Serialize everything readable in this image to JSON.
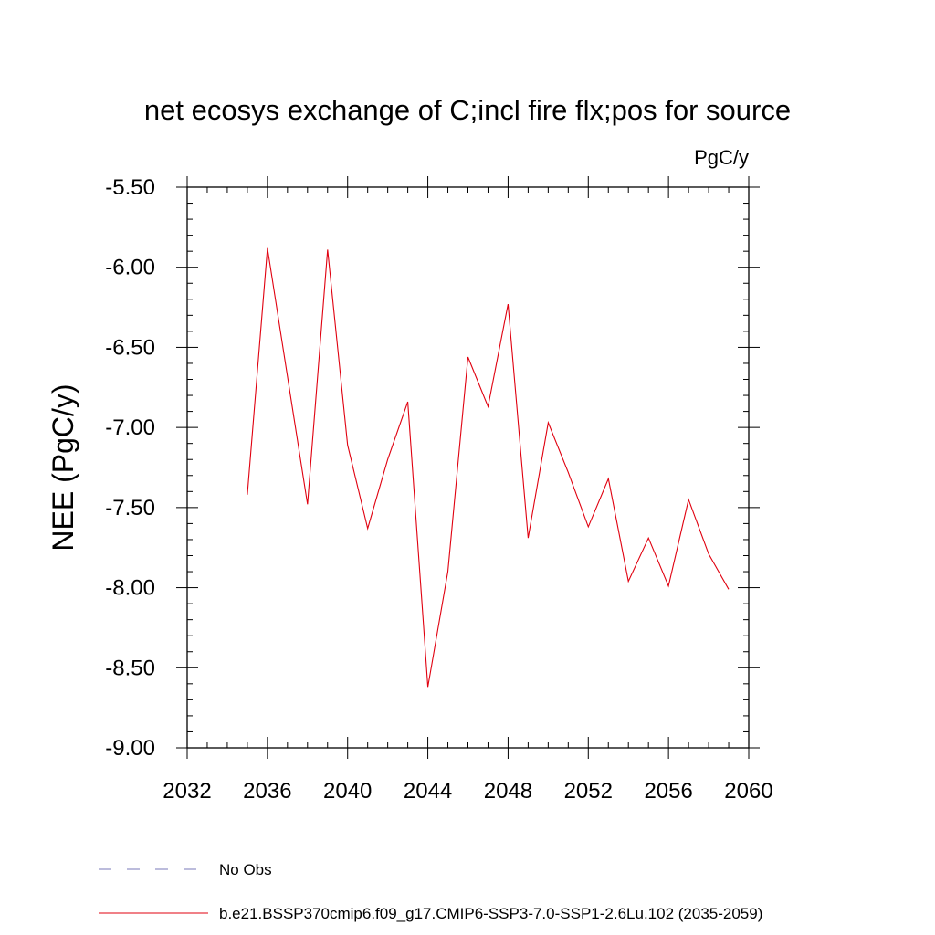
{
  "chart_data": {
    "type": "line",
    "title": "net ecosys exchange of C;incl fire flx;pos for source",
    "units": "PgC/y",
    "ylabel": "NEE  (PgC/y)",
    "xlabel": "",
    "xlim": [
      2032,
      2060
    ],
    "ylim": [
      -9.0,
      -5.5
    ],
    "xticks": [
      "2032",
      "2036",
      "2040",
      "2044",
      "2048",
      "2052",
      "2056",
      "2060"
    ],
    "yticks": [
      "-5.50",
      "-6.00",
      "-6.50",
      "-7.00",
      "-7.50",
      "-8.00",
      "-8.50",
      "-9.00"
    ],
    "grid": false,
    "legend_position": "bottom-left",
    "series": [
      {
        "name": "b.e21.BSSP370cmip6.f09_g17.CMIP6-SSP3-7.0-SSP1-2.6Lu.102 (2035-2059)",
        "color": "#e0000f",
        "style": "solid",
        "x": [
          2035,
          2036,
          2037,
          2038,
          2039,
          2040,
          2041,
          2042,
          2043,
          2044,
          2045,
          2046,
          2047,
          2048,
          2049,
          2050,
          2051,
          2052,
          2053,
          2054,
          2055,
          2056,
          2057,
          2058,
          2059
        ],
        "y": [
          -7.42,
          -5.88,
          -6.68,
          -7.48,
          -5.89,
          -7.11,
          -7.63,
          -7.2,
          -6.84,
          -8.62,
          -7.9,
          -6.56,
          -6.87,
          -6.23,
          -7.69,
          -6.97,
          -7.28,
          -7.62,
          -7.32,
          -7.96,
          -7.69,
          -7.99,
          -7.45,
          -7.79,
          -8.01
        ]
      }
    ],
    "legend": [
      {
        "label": "No Obs",
        "color": "#7a78b8",
        "style": "dashed"
      },
      {
        "label": "b.e21.BSSP370cmip6.f09_g17.CMIP6-SSP3-7.0-SSP1-2.6Lu.102 (2035-2059)",
        "color": "#e0000f",
        "style": "solid"
      }
    ]
  }
}
